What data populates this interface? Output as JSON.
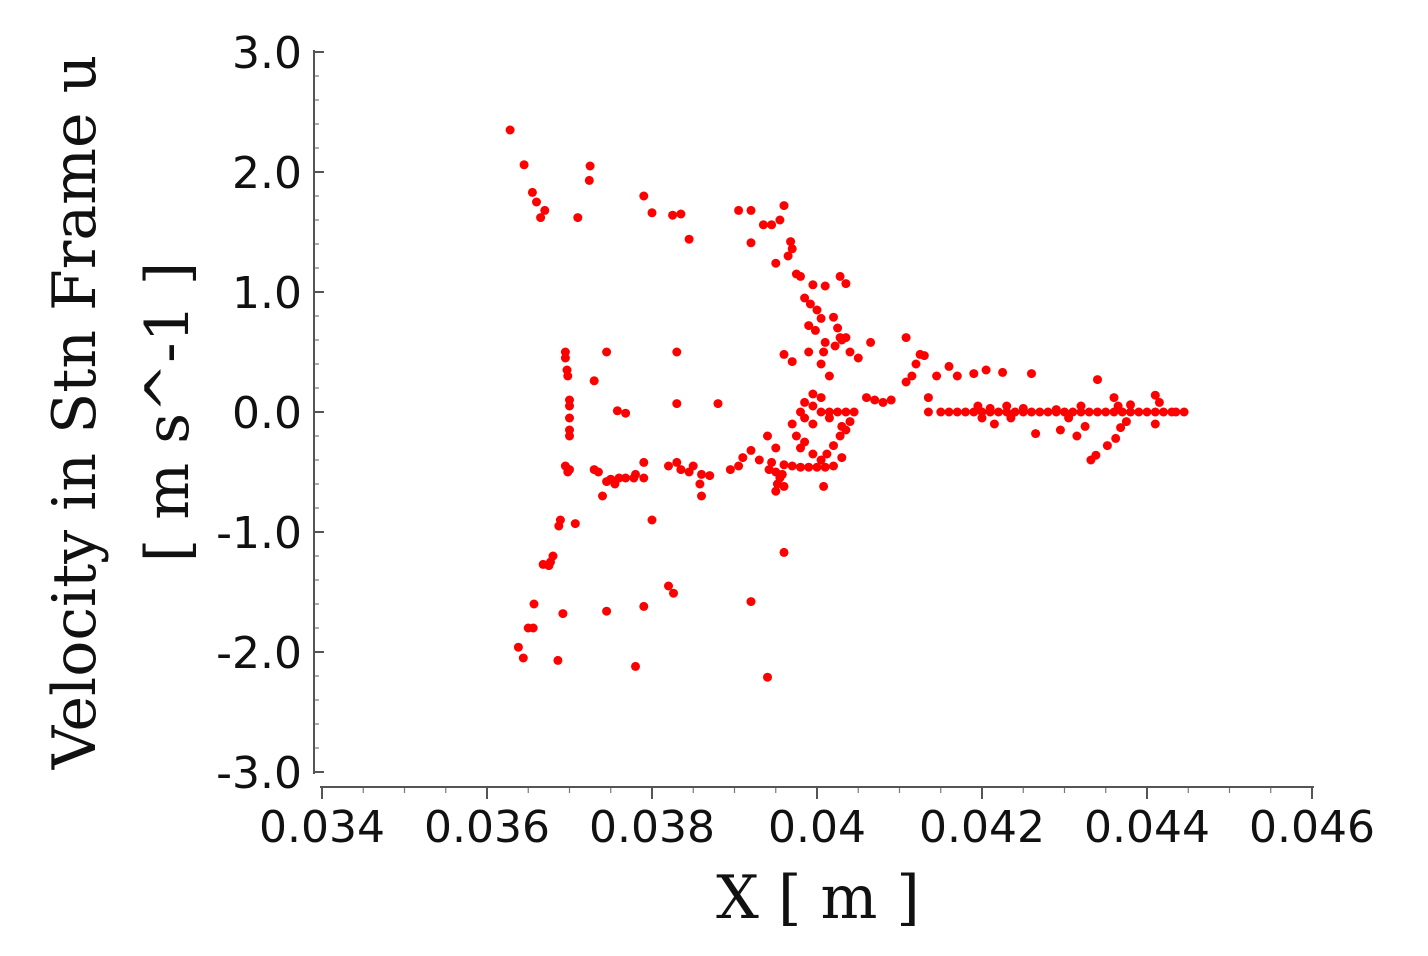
{
  "chart_data": {
    "type": "scatter",
    "title": "",
    "xlabel": "X [ m ]",
    "ylabel_lines": [
      "Velocity in Stn Frame u",
      "[ m s^-1 ]"
    ],
    "xlim": [
      0.034,
      0.046
    ],
    "ylim": [
      -3.0,
      3.0
    ],
    "x_ticks": [
      0.034,
      0.036,
      0.038,
      0.04,
      0.042,
      0.044,
      0.046
    ],
    "x_tick_labels": [
      "0.034",
      "0.036",
      "0.038",
      "0.04",
      "0.042",
      "0.044",
      "0.046"
    ],
    "y_ticks": [
      3.0,
      2.0,
      1.0,
      0.0,
      -1.0,
      -2.0,
      -3.0
    ],
    "y_tick_labels": [
      "3.0",
      "2.0",
      "1.0",
      "0.0",
      "-1.0",
      "-2.0",
      "-3.0"
    ],
    "grid": false,
    "marker_color": "#ff0000",
    "series": [
      {
        "points": [
          [
            0.03628,
            2.35
          ],
          [
            0.03645,
            2.06
          ],
          [
            0.03655,
            1.83
          ],
          [
            0.0366,
            1.75
          ],
          [
            0.03665,
            1.62
          ],
          [
            0.0367,
            1.68
          ],
          [
            0.0371,
            1.62
          ],
          [
            0.03725,
            2.05
          ],
          [
            0.03724,
            1.93
          ],
          [
            0.0379,
            1.8
          ],
          [
            0.038,
            1.66
          ],
          [
            0.03825,
            1.64
          ],
          [
            0.03835,
            1.65
          ],
          [
            0.03845,
            1.44
          ],
          [
            0.03905,
            1.68
          ],
          [
            0.0392,
            1.68
          ],
          [
            0.0392,
            1.41
          ],
          [
            0.03935,
            1.56
          ],
          [
            0.03945,
            1.56
          ],
          [
            0.0396,
            1.72
          ],
          [
            0.03955,
            1.6
          ],
          [
            0.03968,
            1.42
          ],
          [
            0.0397,
            1.36
          ],
          [
            0.03965,
            1.3
          ],
          [
            0.0395,
            1.24
          ],
          [
            0.03975,
            1.15
          ],
          [
            0.0398,
            1.13
          ],
          [
            0.03995,
            1.06
          ],
          [
            0.0401,
            1.05
          ],
          [
            0.04028,
            1.13
          ],
          [
            0.04035,
            1.07
          ],
          [
            0.03985,
            0.95
          ],
          [
            0.03992,
            0.9
          ],
          [
            0.04,
            0.85
          ],
          [
            0.04005,
            0.78
          ],
          [
            0.0399,
            0.72
          ],
          [
            0.03998,
            0.68
          ],
          [
            0.0402,
            0.79
          ],
          [
            0.04025,
            0.7
          ],
          [
            0.04028,
            0.62
          ],
          [
            0.0401,
            0.58
          ],
          [
            0.04022,
            0.55
          ],
          [
            0.0403,
            0.6
          ],
          [
            0.04035,
            0.62
          ],
          [
            0.0399,
            0.5
          ],
          [
            0.04008,
            0.5
          ],
          [
            0.0396,
            0.48
          ],
          [
            0.0397,
            0.42
          ],
          [
            0.04005,
            0.4
          ],
          [
            0.04015,
            0.3
          ],
          [
            0.0404,
            0.5
          ],
          [
            0.0405,
            0.45
          ],
          [
            0.04065,
            0.58
          ],
          [
            0.04108,
            0.62
          ],
          [
            0.04125,
            0.48
          ],
          [
            0.0413,
            0.47
          ],
          [
            0.0412,
            0.4
          ],
          [
            0.04115,
            0.3
          ],
          [
            0.04108,
            0.25
          ],
          [
            0.0406,
            0.12
          ],
          [
            0.0407,
            0.1
          ],
          [
            0.0408,
            0.08
          ],
          [
            0.0409,
            0.1
          ],
          [
            0.04145,
            0.3
          ],
          [
            0.0416,
            0.38
          ],
          [
            0.0417,
            0.3
          ],
          [
            0.0419,
            0.32
          ],
          [
            0.04205,
            0.35
          ],
          [
            0.0426,
            0.32
          ],
          [
            0.04225,
            0.33
          ],
          [
            0.04135,
            0.12
          ],
          [
            0.0434,
            0.27
          ],
          [
            0.0436,
            0.12
          ],
          [
            0.04365,
            0.05
          ],
          [
            0.0441,
            0.14
          ],
          [
            0.04415,
            0.08
          ],
          [
            0.04135,
            0.0
          ],
          [
            0.0415,
            0.0
          ],
          [
            0.0416,
            0.0
          ],
          [
            0.0417,
            0.0
          ],
          [
            0.0418,
            0.0
          ],
          [
            0.0419,
            0.0
          ],
          [
            0.042,
            0.0
          ],
          [
            0.0421,
            0.0
          ],
          [
            0.0422,
            0.0
          ],
          [
            0.0423,
            0.0
          ],
          [
            0.0424,
            0.0
          ],
          [
            0.0425,
            0.0
          ],
          [
            0.0426,
            0.0
          ],
          [
            0.0427,
            0.0
          ],
          [
            0.0428,
            0.0
          ],
          [
            0.0429,
            0.0
          ],
          [
            0.043,
            0.0
          ],
          [
            0.0431,
            0.0
          ],
          [
            0.0432,
            0.0
          ],
          [
            0.0433,
            0.0
          ],
          [
            0.0434,
            0.0
          ],
          [
            0.0435,
            0.0
          ],
          [
            0.0436,
            0.0
          ],
          [
            0.0437,
            0.0
          ],
          [
            0.0438,
            0.0
          ],
          [
            0.0439,
            0.0
          ],
          [
            0.044,
            0.0
          ],
          [
            0.0441,
            0.0
          ],
          [
            0.0442,
            0.0
          ],
          [
            0.0443,
            0.0
          ],
          [
            0.04435,
            0.0
          ],
          [
            0.04445,
            0.0
          ],
          [
            0.04195,
            0.05
          ],
          [
            0.042,
            -0.05
          ],
          [
            0.0421,
            0.03
          ],
          [
            0.04215,
            -0.1
          ],
          [
            0.0423,
            0.05
          ],
          [
            0.04235,
            -0.05
          ],
          [
            0.0425,
            0.03
          ],
          [
            0.04265,
            -0.18
          ],
          [
            0.0429,
            0.02
          ],
          [
            0.04295,
            -0.15
          ],
          [
            0.04305,
            -0.05
          ],
          [
            0.04315,
            -0.2
          ],
          [
            0.0432,
            0.05
          ],
          [
            0.04325,
            -0.12
          ],
          [
            0.04332,
            -0.4
          ],
          [
            0.04338,
            -0.36
          ],
          [
            0.04352,
            -0.28
          ],
          [
            0.04362,
            -0.22
          ],
          [
            0.04368,
            -0.13
          ],
          [
            0.04375,
            -0.08
          ],
          [
            0.0438,
            0.06
          ],
          [
            0.0441,
            -0.1
          ],
          [
            0.03995,
            0.15
          ],
          [
            0.04005,
            0.12
          ],
          [
            0.03985,
            0.08
          ],
          [
            0.03995,
            0.05
          ],
          [
            0.04005,
            0.0
          ],
          [
            0.04015,
            0.0
          ],
          [
            0.04025,
            0.0
          ],
          [
            0.04035,
            0.0
          ],
          [
            0.04045,
            0.0
          ],
          [
            0.0398,
            0.0
          ],
          [
            0.03985,
            -0.05
          ],
          [
            0.03995,
            -0.1
          ],
          [
            0.04015,
            -0.05
          ],
          [
            0.0403,
            -0.12
          ],
          [
            0.0404,
            -0.08
          ],
          [
            0.0397,
            -0.1
          ],
          [
            0.03975,
            -0.2
          ],
          [
            0.0398,
            -0.3
          ],
          [
            0.03985,
            -0.25
          ],
          [
            0.03995,
            -0.35
          ],
          [
            0.04005,
            -0.4
          ],
          [
            0.04012,
            -0.35
          ],
          [
            0.0402,
            -0.28
          ],
          [
            0.04028,
            -0.2
          ],
          [
            0.04035,
            -0.15
          ],
          [
            0.0394,
            -0.2
          ],
          [
            0.0395,
            -0.3
          ],
          [
            0.03945,
            -0.42
          ],
          [
            0.0396,
            -0.44
          ],
          [
            0.0397,
            -0.45
          ],
          [
            0.0398,
            -0.46
          ],
          [
            0.0399,
            -0.46
          ],
          [
            0.04,
            -0.46
          ],
          [
            0.0401,
            -0.46
          ],
          [
            0.0402,
            -0.45
          ],
          [
            0.0403,
            -0.38
          ],
          [
            0.0395,
            -0.5
          ],
          [
            0.03955,
            -0.55
          ],
          [
            0.03958,
            -0.52
          ],
          [
            0.03952,
            -0.6
          ],
          [
            0.0396,
            -0.62
          ],
          [
            0.0395,
            -0.66
          ],
          [
            0.04008,
            -0.62
          ],
          [
            0.0392,
            -0.32
          ],
          [
            0.0393,
            -0.4
          ],
          [
            0.03942,
            -0.48
          ],
          [
            0.0391,
            -0.38
          ],
          [
            0.03905,
            -0.45
          ],
          [
            0.03895,
            -0.48
          ],
          [
            0.03695,
            0.5
          ],
          [
            0.03695,
            0.45
          ],
          [
            0.03697,
            0.35
          ],
          [
            0.03698,
            0.3
          ],
          [
            0.037,
            0.1
          ],
          [
            0.037,
            0.05
          ],
          [
            0.037,
            -0.05
          ],
          [
            0.037,
            -0.15
          ],
          [
            0.037,
            -0.2
          ],
          [
            0.03695,
            -0.45
          ],
          [
            0.03698,
            -0.5
          ],
          [
            0.037,
            -0.48
          ],
          [
            0.0373,
            -0.48
          ],
          [
            0.03735,
            -0.5
          ],
          [
            0.03745,
            -0.58
          ],
          [
            0.0375,
            -0.56
          ],
          [
            0.03755,
            -0.6
          ],
          [
            0.0376,
            -0.55
          ],
          [
            0.03768,
            -0.55
          ],
          [
            0.03778,
            -0.55
          ],
          [
            0.0378,
            -0.52
          ],
          [
            0.0379,
            -0.55
          ],
          [
            0.0379,
            -0.42
          ],
          [
            0.0382,
            -0.45
          ],
          [
            0.0383,
            -0.42
          ],
          [
            0.03835,
            -0.48
          ],
          [
            0.03845,
            -0.5
          ],
          [
            0.0385,
            -0.45
          ],
          [
            0.03858,
            -0.6
          ],
          [
            0.0386,
            -0.52
          ],
          [
            0.0387,
            -0.53
          ],
          [
            0.0374,
            -0.7
          ],
          [
            0.0386,
            -0.7
          ],
          [
            0.03745,
            0.5
          ],
          [
            0.0373,
            0.26
          ],
          [
            0.03758,
            0.01
          ],
          [
            0.03768,
            -0.01
          ],
          [
            0.0383,
            0.07
          ],
          [
            0.0388,
            0.07
          ],
          [
            0.0383,
            0.5
          ],
          [
            0.03689,
            -0.9
          ],
          [
            0.03687,
            -0.95
          ],
          [
            0.03707,
            -0.93
          ],
          [
            0.038,
            -0.9
          ],
          [
            0.0368,
            -1.2
          ],
          [
            0.03677,
            -1.25
          ],
          [
            0.03675,
            -1.28
          ],
          [
            0.03668,
            -1.27
          ],
          [
            0.03692,
            -1.68
          ],
          [
            0.03657,
            -1.6
          ],
          [
            0.0365,
            -1.8
          ],
          [
            0.03656,
            -1.8
          ],
          [
            0.03644,
            -2.05
          ],
          [
            0.03638,
            -1.96
          ],
          [
            0.03686,
            -2.07
          ],
          [
            0.03745,
            -1.66
          ],
          [
            0.0379,
            -1.62
          ],
          [
            0.0382,
            -1.45
          ],
          [
            0.03826,
            -1.51
          ],
          [
            0.0378,
            -2.12
          ],
          [
            0.0392,
            -1.58
          ],
          [
            0.0396,
            -1.17
          ],
          [
            0.0394,
            -2.21
          ]
        ]
      }
    ]
  }
}
